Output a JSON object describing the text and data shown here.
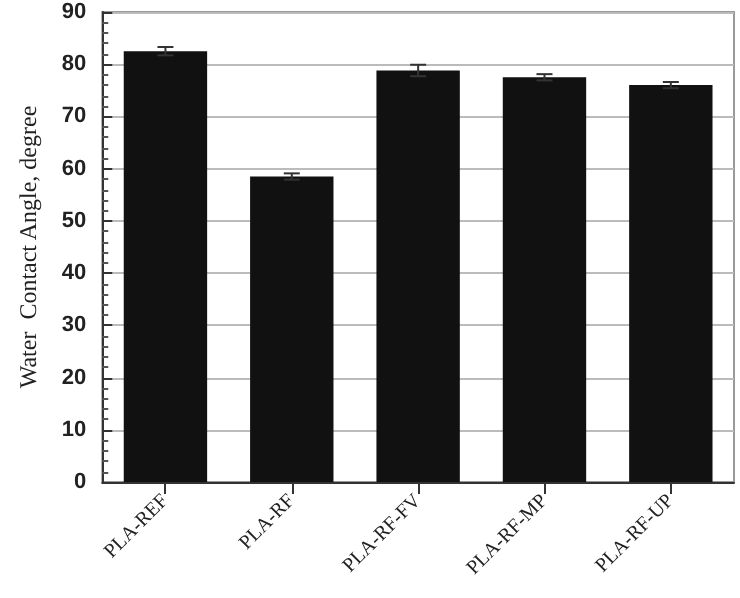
{
  "chart_data": {
    "type": "bar",
    "ylabel": "Water  Contact Angle, degree",
    "categories": [
      "PLA-REF",
      "PLA-RF",
      "PLA-RF-FV",
      "PLA-RF-MP",
      "PLA-RF-UP"
    ],
    "values": [
      82.5,
      58.5,
      78.8,
      77.5,
      76
    ],
    "errors": [
      0.8,
      0.6,
      1.1,
      0.6,
      0.6
    ],
    "color": "#111111",
    "ylim": [
      0,
      90
    ],
    "yticks": [
      0,
      10,
      20,
      30,
      40,
      50,
      60,
      70,
      80,
      90
    ],
    "grid": "y"
  }
}
